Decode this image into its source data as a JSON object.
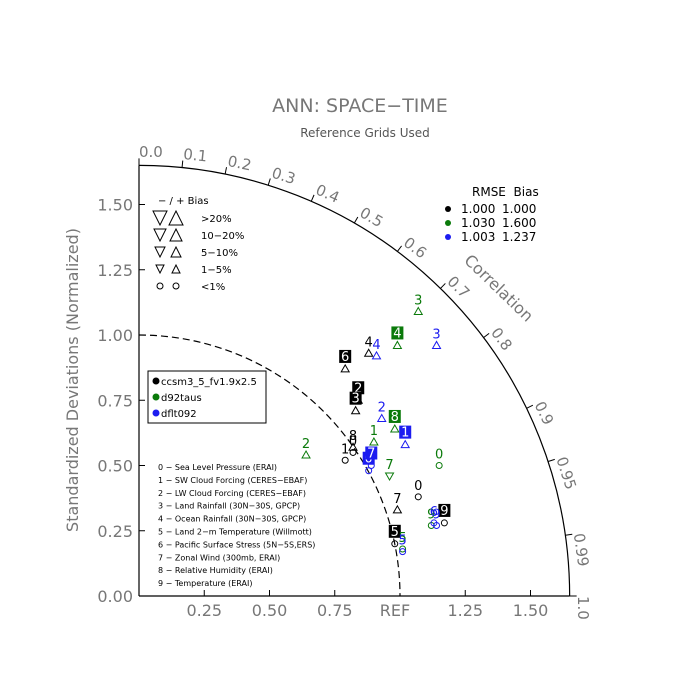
{
  "chart_data": {
    "type": "taylor-diagram",
    "title": "ANN: SPACE−TIME",
    "subtitle": "Reference Grids Used",
    "ylabel": "Standardized Deviations (Normalized)",
    "correlation_label": "Correlation",
    "ref_label": "REF",
    "x_ticks": [
      "0.25",
      "0.50",
      "0.75",
      "1.25",
      "1.50"
    ],
    "x_tick_values": [
      0.25,
      0.5,
      0.75,
      1.25,
      1.5
    ],
    "y_ticks": [
      "0.00",
      "0.25",
      "0.50",
      "0.75",
      "1.00",
      "1.25",
      "1.50"
    ],
    "y_tick_values": [
      0,
      0.25,
      0.5,
      0.75,
      1.0,
      1.25,
      1.5
    ],
    "corr_labels": [
      "0.0",
      "0.1",
      "0.2",
      "0.3",
      "0.4",
      "0.5",
      "0.6",
      "0.7",
      "0.8",
      "0.9",
      "0.95",
      "0.99",
      "1.0"
    ],
    "corr_values": [
      0.0,
      0.1,
      0.2,
      0.3,
      0.4,
      0.5,
      0.6,
      0.7,
      0.8,
      0.9,
      0.95,
      0.99,
      1.0
    ],
    "rmse_bias_header": "RMSE  Bias",
    "rmse_rows": [
      {
        "rmse": "1.000",
        "bias": "1.000",
        "color": "#000000"
      },
      {
        "rmse": "1.030",
        "bias": "1.600",
        "color": "#0a7a0a"
      },
      {
        "rmse": "1.003",
        "bias": "1.237",
        "color": "#1c1cf0"
      }
    ],
    "bias_legend": {
      "header": "−  /  +      Bias",
      "rows": [
        ">20%",
        "10−20%",
        "5−10%",
        "1−5%",
        "<1%"
      ]
    },
    "cases": [
      {
        "name": "ccsm3_5_fv1.9x2.5",
        "color": "#000000"
      },
      {
        "name": "d92taus",
        "color": "#0a7a0a"
      },
      {
        "name": "dflt092",
        "color": "#1c1cf0"
      }
    ],
    "variables": [
      "0 − Sea Level Pressure (ERAI)",
      "1 − SW Cloud Forcing (CERES−EBAF)",
      "2 − LW Cloud Forcing (CERES−EBAF)",
      "3 − Land Rainfall (30N−30S, GPCP)",
      "4 − Ocean Rainfall (30N−30S, GPCP)",
      "5 − Land 2−m Temperature (Willmott)",
      "6 − Pacific Surface Stress (5N−5S,ERS)",
      "7 − Zonal Wind (300mb, ERAI)",
      "8 − Relative Humidity (ERAI)",
      "9 − Temperature (ERAI)"
    ],
    "points": [
      {
        "case": 0,
        "label": "0",
        "x": 0.82,
        "y": 0.55,
        "marker": "circle",
        "boxed": false
      },
      {
        "case": 0,
        "label": "1",
        "x": 0.79,
        "y": 0.52,
        "marker": "circle",
        "boxed": false
      },
      {
        "case": 0,
        "label": "2",
        "x": 0.84,
        "y": 0.75,
        "marker": "tri-up",
        "boxed": true
      },
      {
        "case": 0,
        "label": "3",
        "x": 0.83,
        "y": 0.71,
        "marker": "tri-up",
        "boxed": true
      },
      {
        "case": 0,
        "label": "4",
        "x": 0.88,
        "y": 0.93,
        "marker": "tri-up",
        "boxed": false
      },
      {
        "case": 0,
        "label": "5",
        "x": 0.98,
        "y": 0.2,
        "marker": "circle",
        "boxed": true
      },
      {
        "case": 0,
        "label": "6",
        "x": 0.79,
        "y": 0.87,
        "marker": "tri-up",
        "boxed": true
      },
      {
        "case": 0,
        "label": "7",
        "x": 0.99,
        "y": 0.33,
        "marker": "tri-up",
        "boxed": false
      },
      {
        "case": 0,
        "label": "8",
        "x": 0.82,
        "y": 0.57,
        "marker": "tri-up",
        "boxed": false
      },
      {
        "case": 0,
        "label": "9",
        "x": 1.17,
        "y": 0.28,
        "marker": "circle",
        "boxed": true
      },
      {
        "case": 0,
        "label": "0",
        "x": 1.07,
        "y": 0.38,
        "marker": "circle",
        "boxed": false
      },
      {
        "case": 1,
        "label": "0",
        "x": 1.15,
        "y": 0.5,
        "marker": "circle",
        "boxed": false
      },
      {
        "case": 1,
        "label": "1",
        "x": 0.9,
        "y": 0.59,
        "marker": "tri-up",
        "boxed": false
      },
      {
        "case": 1,
        "label": "2",
        "x": 0.64,
        "y": 0.54,
        "marker": "tri-up",
        "boxed": false
      },
      {
        "case": 1,
        "label": "3",
        "x": 1.07,
        "y": 1.09,
        "marker": "tri-up",
        "boxed": false
      },
      {
        "case": 1,
        "label": "4",
        "x": 0.99,
        "y": 0.96,
        "marker": "tri-up",
        "boxed": true
      },
      {
        "case": 1,
        "label": "5",
        "x": 1.01,
        "y": 0.18,
        "marker": "circle",
        "boxed": false
      },
      {
        "case": 1,
        "label": "7",
        "x": 0.96,
        "y": 0.46,
        "marker": "tri-down",
        "boxed": false
      },
      {
        "case": 1,
        "label": "8",
        "x": 0.98,
        "y": 0.64,
        "marker": "tri-up",
        "boxed": true
      },
      {
        "case": 1,
        "label": "9",
        "x": 1.12,
        "y": 0.27,
        "marker": "circle",
        "boxed": false
      },
      {
        "case": 2,
        "label": "0",
        "x": 0.88,
        "y": 0.48,
        "marker": "circle",
        "boxed": true
      },
      {
        "case": 2,
        "label": "1",
        "x": 1.02,
        "y": 0.58,
        "marker": "tri-up",
        "boxed": true
      },
      {
        "case": 2,
        "label": "2",
        "x": 0.93,
        "y": 0.68,
        "marker": "tri-up",
        "boxed": false
      },
      {
        "case": 2,
        "label": "3",
        "x": 1.14,
        "y": 0.96,
        "marker": "tri-up",
        "boxed": false
      },
      {
        "case": 2,
        "label": "4",
        "x": 0.91,
        "y": 0.92,
        "marker": "tri-up",
        "boxed": false
      },
      {
        "case": 2,
        "label": "5",
        "x": 1.01,
        "y": 0.17,
        "marker": "circle",
        "boxed": false
      },
      {
        "case": 2,
        "label": "6",
        "x": 1.13,
        "y": 0.28,
        "marker": "circle",
        "boxed": false
      },
      {
        "case": 2,
        "label": "7",
        "x": 0.89,
        "y": 0.5,
        "marker": "circle",
        "boxed": true
      },
      {
        "case": 2,
        "label": "9",
        "x": 1.14,
        "y": 0.27,
        "marker": "circle",
        "boxed": false
      }
    ]
  }
}
